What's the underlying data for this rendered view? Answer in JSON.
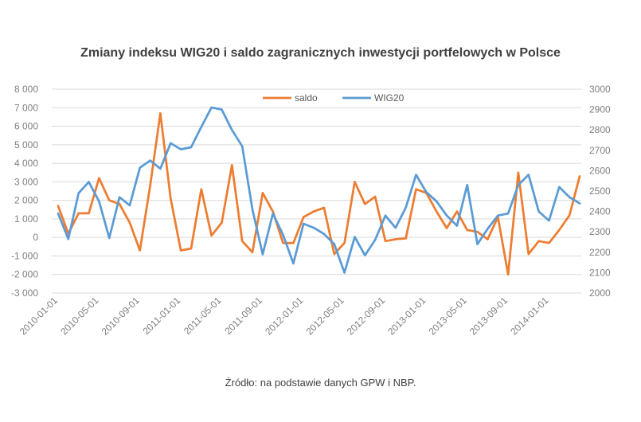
{
  "title": "Zmiany indeksu WIG20 i saldo zagranicznych inwestycji portfelowych  w Polsce",
  "source": "Źródło: na podstawie danych GPW i NBP.",
  "colors": {
    "saldo": "#ED7D31",
    "wig20": "#5B9BD5",
    "grid": "#d9d9d9",
    "text": "#7f7f7f"
  },
  "chart_data": {
    "type": "line",
    "title": "Zmiany indeksu WIG20 i saldo zagranicznych inwestycji portfelowych  w Polsce",
    "x_tick_labels": [
      "2010-01-01",
      "2010-05-01",
      "2010-09-01",
      "2011-01-01",
      "2011-05-01",
      "2011-09-01",
      "2012-01-01",
      "2012-05-01",
      "2012-09-01",
      "2013-01-01",
      "2013-05-01",
      "2013-09-01",
      "2014-01-01"
    ],
    "x": [
      "2010-01",
      "2010-02",
      "2010-03",
      "2010-04",
      "2010-05",
      "2010-06",
      "2010-07",
      "2010-08",
      "2010-09",
      "2010-10",
      "2010-11",
      "2010-12",
      "2011-01",
      "2011-02",
      "2011-03",
      "2011-04",
      "2011-05",
      "2011-06",
      "2011-07",
      "2011-08",
      "2011-09",
      "2011-10",
      "2011-11",
      "2011-12",
      "2012-01",
      "2012-02",
      "2012-03",
      "2012-04",
      "2012-05",
      "2012-06",
      "2012-07",
      "2012-08",
      "2012-09",
      "2012-10",
      "2012-11",
      "2012-12",
      "2013-01",
      "2013-02",
      "2013-03",
      "2013-04",
      "2013-05",
      "2013-06",
      "2013-07",
      "2013-08",
      "2013-09",
      "2013-10",
      "2013-11",
      "2013-12",
      "2014-01",
      "2014-02",
      "2014-03",
      "2014-04"
    ],
    "y_left_ticks": [
      "8 000",
      "7 000",
      "6 000",
      "5 000",
      "4 000",
      "3 000",
      "2 000",
      "1 000",
      "0",
      "-1 000",
      "-2 000",
      "-3 000"
    ],
    "y_right_ticks": [
      "3000",
      "2900",
      "2800",
      "2700",
      "2600",
      "2500",
      "2400",
      "2300",
      "2200",
      "2100",
      "2000"
    ],
    "y_left_range": [
      -3000,
      8000
    ],
    "y_right_range": [
      2000,
      3000
    ],
    "legend_position": "top",
    "grid": true,
    "series": [
      {
        "name": "saldo",
        "axis": "left",
        "values": [
          1700,
          200,
          1300,
          1300,
          3200,
          2000,
          1800,
          800,
          -700,
          2800,
          6700,
          2100,
          -700,
          -600,
          2600,
          100,
          800,
          3900,
          -200,
          -800,
          2400,
          1400,
          -300,
          -300,
          1100,
          1400,
          1600,
          -900,
          -300,
          3000,
          1800,
          2200,
          -200,
          -100,
          -50,
          2600,
          2400,
          1400,
          500,
          1400,
          400,
          300,
          -100,
          1100,
          -2000,
          3500,
          -900,
          -200,
          -300,
          400,
          1200,
          3300
        ]
      },
      {
        "name": "WIG20",
        "axis": "right",
        "values": [
          2390,
          2265,
          2490,
          2545,
          2450,
          2270,
          2470,
          2430,
          2615,
          2650,
          2610,
          2735,
          2705,
          2715,
          2815,
          2910,
          2900,
          2800,
          2720,
          2410,
          2190,
          2390,
          2285,
          2145,
          2340,
          2320,
          2290,
          2240,
          2100,
          2275,
          2185,
          2260,
          2380,
          2320,
          2420,
          2580,
          2495,
          2450,
          2380,
          2330,
          2530,
          2240,
          2315,
          2380,
          2390,
          2530,
          2580,
          2400,
          2355,
          2520,
          2470,
          2440
        ]
      }
    ]
  }
}
